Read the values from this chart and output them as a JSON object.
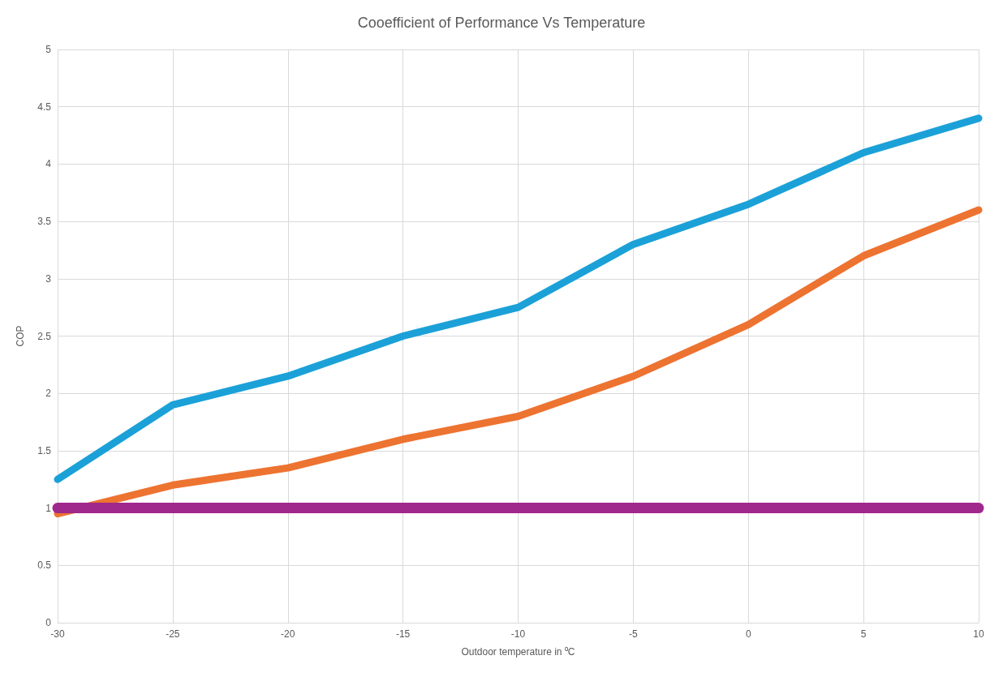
{
  "chart_data": {
    "type": "line",
    "title": "Cooefficient of Performance Vs Temperature",
    "xlabel": "Outdoor temperature in ⁰C",
    "ylabel": "COP",
    "x": [
      -30,
      -25,
      -20,
      -15,
      -10,
      -5,
      0,
      5,
      10
    ],
    "series": [
      {
        "color": "#1ba1d8",
        "values": [
          1.25,
          1.9,
          2.15,
          2.5,
          2.75,
          3.3,
          3.65,
          4.1,
          4.4
        ]
      },
      {
        "color": "#ed7331",
        "values": [
          0.95,
          1.2,
          1.35,
          1.6,
          1.8,
          2.15,
          2.6,
          3.2,
          3.6
        ]
      },
      {
        "color": "#a0288c",
        "x": [
          -30,
          10
        ],
        "values": [
          1,
          1
        ]
      }
    ],
    "xlim": [
      -30,
      10
    ],
    "xticks": [
      -30,
      -25,
      -20,
      -15,
      -10,
      -5,
      0,
      5,
      10
    ],
    "ylim": [
      0,
      5
    ],
    "yticks": [
      0,
      0.5,
      1,
      1.5,
      2,
      2.5,
      3,
      3.5,
      4,
      4.5,
      5
    ],
    "grid": true,
    "line_style": "solid"
  }
}
